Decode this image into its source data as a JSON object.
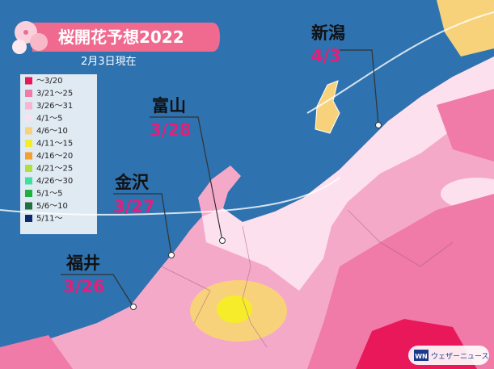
{
  "header": {
    "title": "桜開花予想2022",
    "date": "2月3日現在"
  },
  "legend": [
    {
      "label": "～3/20",
      "color": "#e8185a"
    },
    {
      "label": "3/21～25",
      "color": "#f07aa8"
    },
    {
      "label": "3/26～31",
      "color": "#f8b4d0"
    },
    {
      "label": "4/1～5",
      "color": "#fde0ee"
    },
    {
      "label": "4/6～10",
      "color": "#f8d27a"
    },
    {
      "label": "4/11～15",
      "color": "#f6ec2a"
    },
    {
      "label": "4/16～20",
      "color": "#f4a030"
    },
    {
      "label": "4/21～25",
      "color": "#b0e040"
    },
    {
      "label": "4/26～30",
      "color": "#40e0a0"
    },
    {
      "label": "5/1～5",
      "color": "#20b040"
    },
    {
      "label": "5/6～10",
      "color": "#207040"
    },
    {
      "label": "5/11～",
      "color": "#102a70"
    }
  ],
  "cities": [
    {
      "name": "新潟",
      "date": "4/3"
    },
    {
      "name": "富山",
      "date": "3/28"
    },
    {
      "name": "金沢",
      "date": "3/27"
    },
    {
      "name": "福井",
      "date": "3/26"
    }
  ],
  "logo": {
    "mark": "WN",
    "text": "ウェザーニュース"
  }
}
